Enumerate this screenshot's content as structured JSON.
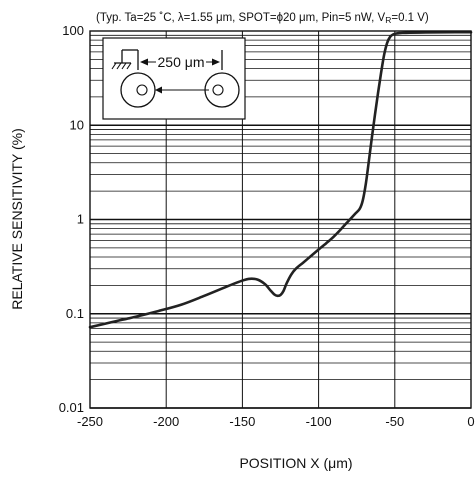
{
  "chart_data": {
    "type": "line",
    "title": "(Typ. Ta=25 ˚C, λ=1.55 μm, SPOT=ϕ20 μm, Pin=5 nW, V",
    "title_sub": "R",
    "title_tail": "=0.1 V)",
    "xlabel": "POSITION X (μm)",
    "ylabel": "RELATIVE SENSITIVITY (%)",
    "xlim": [
      -250,
      0
    ],
    "ylim": [
      0.01,
      100
    ],
    "yscale": "log",
    "grid": true,
    "x_ticks": [
      -250,
      -200,
      -150,
      -100,
      -50,
      0
    ],
    "x_tick_labels": [
      "-250",
      "-200",
      "-150",
      "-100",
      "-50",
      "0"
    ],
    "y_ticks": [
      0.01,
      0.1,
      1,
      10,
      100
    ],
    "y_tick_labels": [
      "0.01",
      "0.1",
      "1",
      "10",
      "100"
    ],
    "inset_label": "250 μm",
    "series": [
      {
        "color": "#222222",
        "x": [
          -250,
          -235,
          -220,
          -205,
          -190,
          -175,
          -160,
          -150,
          -145,
          -140,
          -135,
          -132,
          -129,
          -127,
          -125,
          -123,
          -121,
          -118,
          -115,
          -110,
          -105,
          -100,
          -95,
          -90,
          -85,
          -80,
          -76,
          -73,
          -71,
          -69,
          -67,
          -65,
          -63,
          -61,
          -59,
          -57,
          -55,
          -53,
          -51,
          -49,
          -47,
          -45,
          -40,
          -30,
          -20,
          -10,
          0
        ],
        "y": [
          0.072,
          0.082,
          0.093,
          0.107,
          0.125,
          0.155,
          0.195,
          0.225,
          0.235,
          0.23,
          0.205,
          0.18,
          0.16,
          0.155,
          0.158,
          0.175,
          0.21,
          0.26,
          0.3,
          0.35,
          0.41,
          0.48,
          0.56,
          0.66,
          0.8,
          0.98,
          1.15,
          1.3,
          1.6,
          2.4,
          4.2,
          7.5,
          13,
          22,
          36,
          56,
          75,
          87,
          92,
          94,
          95,
          95.5,
          96,
          96.5,
          96.8,
          97,
          97
        ]
      }
    ]
  }
}
